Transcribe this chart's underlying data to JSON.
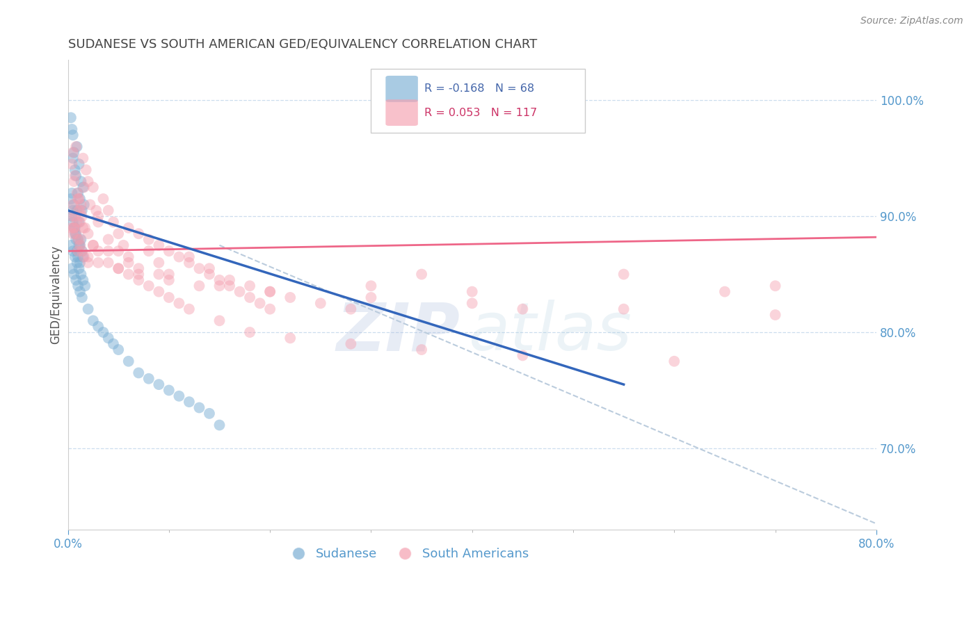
{
  "title": "SUDANESE VS SOUTH AMERICAN GED/EQUIVALENCY CORRELATION CHART",
  "source": "Source: ZipAtlas.com",
  "ylabel": "GED/Equivalency",
  "right_yticks": [
    70.0,
    80.0,
    90.0,
    100.0
  ],
  "right_ytick_labels": [
    "70.0%",
    "80.0%",
    "90.0%",
    "100.0%"
  ],
  "legend_blue_label": "Sudanese",
  "legend_pink_label": "South Americans",
  "legend_blue_r": "R = -0.168",
  "legend_blue_n": "N = 68",
  "legend_pink_r": "R = 0.053",
  "legend_pink_n": "N = 117",
  "blue_color": "#7BAFD4",
  "pink_color": "#F5A0B0",
  "blue_line_color": "#3366BB",
  "pink_line_color": "#EE6688",
  "dashed_line_color": "#BBCCDD",
  "x_min": 0.0,
  "x_max": 80.0,
  "y_min": 63.0,
  "y_max": 103.5,
  "blue_scatter_x": [
    0.3,
    0.4,
    0.5,
    0.5,
    0.6,
    0.7,
    0.8,
    0.9,
    1.0,
    1.1,
    1.2,
    1.3,
    1.4,
    1.5,
    1.6,
    0.4,
    0.5,
    0.6,
    0.7,
    0.8,
    0.9,
    1.0,
    1.1,
    1.2,
    1.3,
    1.4,
    1.5,
    0.3,
    0.5,
    0.7,
    0.9,
    1.1,
    1.3,
    1.5,
    1.7,
    0.4,
    0.6,
    0.8,
    1.0,
    1.2,
    1.4,
    2.0,
    2.5,
    3.0,
    3.5,
    4.0,
    4.5,
    5.0,
    6.0,
    7.0,
    8.0,
    9.0,
    10.0,
    11.0,
    12.0,
    13.0,
    14.0,
    15.0,
    0.3,
    0.4,
    0.5,
    0.6,
    0.7,
    0.8,
    0.9,
    1.0,
    1.1,
    1.2
  ],
  "blue_scatter_y": [
    98.5,
    97.5,
    97.0,
    95.0,
    95.5,
    94.0,
    93.5,
    96.0,
    92.0,
    94.5,
    91.5,
    93.0,
    90.5,
    92.5,
    91.0,
    90.0,
    89.5,
    91.0,
    89.0,
    88.5,
    90.5,
    88.0,
    89.5,
    87.5,
    88.0,
    87.0,
    86.5,
    87.5,
    87.0,
    86.5,
    86.0,
    85.5,
    85.0,
    84.5,
    84.0,
    85.5,
    85.0,
    84.5,
    84.0,
    83.5,
    83.0,
    82.0,
    81.0,
    80.5,
    80.0,
    79.5,
    79.0,
    78.5,
    77.5,
    76.5,
    76.0,
    75.5,
    75.0,
    74.5,
    74.0,
    73.5,
    73.0,
    72.0,
    91.5,
    92.0,
    90.5,
    89.0,
    88.5,
    88.0,
    87.0,
    86.5,
    87.5,
    86.0
  ],
  "pink_scatter_x": [
    0.3,
    0.4,
    0.5,
    0.6,
    0.7,
    0.8,
    0.9,
    1.0,
    1.1,
    1.2,
    1.3,
    1.4,
    1.5,
    1.6,
    1.7,
    1.8,
    2.0,
    2.2,
    2.5,
    2.8,
    3.0,
    3.5,
    4.0,
    4.5,
    5.0,
    5.5,
    6.0,
    7.0,
    8.0,
    9.0,
    10.0,
    11.0,
    12.0,
    13.0,
    14.0,
    15.0,
    16.0,
    17.0,
    18.0,
    19.0,
    20.0,
    22.0,
    25.0,
    28.0,
    30.0,
    35.0,
    40.0,
    45.0,
    55.0,
    65.0,
    70.0,
    0.5,
    0.7,
    0.9,
    1.1,
    1.3,
    1.5,
    2.0,
    2.5,
    3.0,
    4.0,
    5.0,
    6.0,
    7.0,
    8.0,
    9.0,
    10.0,
    12.0,
    14.0,
    16.0,
    18.0,
    20.0,
    0.4,
    0.6,
    0.8,
    1.0,
    1.2,
    1.4,
    1.6,
    2.0,
    3.0,
    4.0,
    5.0,
    6.0,
    7.0,
    8.0,
    9.0,
    10.0,
    11.0,
    12.0,
    15.0,
    18.0,
    22.0,
    28.0,
    35.0,
    45.0,
    60.0,
    0.5,
    1.0,
    2.0,
    3.0,
    5.0,
    7.0,
    10.0,
    15.0,
    20.0,
    30.0,
    40.0,
    55.0,
    70.0,
    0.6,
    1.2,
    2.5,
    4.0,
    6.0,
    9.0,
    13.0
  ],
  "pink_scatter_y": [
    89.0,
    94.5,
    95.5,
    93.0,
    93.5,
    96.0,
    92.0,
    91.5,
    90.5,
    89.5,
    91.0,
    90.0,
    95.0,
    92.5,
    89.0,
    94.0,
    93.0,
    91.0,
    92.5,
    90.5,
    90.0,
    91.5,
    90.5,
    89.5,
    88.5,
    87.5,
    89.0,
    88.5,
    88.0,
    87.5,
    87.0,
    86.5,
    86.0,
    85.5,
    85.0,
    84.5,
    84.0,
    83.5,
    83.0,
    82.5,
    82.0,
    83.0,
    82.5,
    82.0,
    84.0,
    85.0,
    83.5,
    82.0,
    85.0,
    83.5,
    84.0,
    91.0,
    90.0,
    89.5,
    91.5,
    90.5,
    89.0,
    88.5,
    87.5,
    89.5,
    88.0,
    87.0,
    86.5,
    85.5,
    87.0,
    86.0,
    85.0,
    86.5,
    85.5,
    84.5,
    84.0,
    83.5,
    90.0,
    89.0,
    88.5,
    88.0,
    87.5,
    87.0,
    86.5,
    86.0,
    87.0,
    86.0,
    85.5,
    85.0,
    84.5,
    84.0,
    83.5,
    83.0,
    82.5,
    82.0,
    81.0,
    80.0,
    79.5,
    79.0,
    78.5,
    78.0,
    77.5,
    88.5,
    87.0,
    86.5,
    86.0,
    85.5,
    85.0,
    84.5,
    84.0,
    83.5,
    83.0,
    82.5,
    82.0,
    81.5,
    89.0,
    88.0,
    87.5,
    87.0,
    86.0,
    85.0,
    84.0
  ],
  "blue_line_x0": 0.0,
  "blue_line_y0": 90.5,
  "blue_line_x1": 55.0,
  "blue_line_y1": 75.5,
  "pink_line_x0": 0.0,
  "pink_line_y0": 87.0,
  "pink_line_x1": 80.0,
  "pink_line_y1": 88.2,
  "dash_line_x0": 15.0,
  "dash_line_y0": 87.5,
  "dash_line_x1": 80.0,
  "dash_line_y1": 63.5
}
